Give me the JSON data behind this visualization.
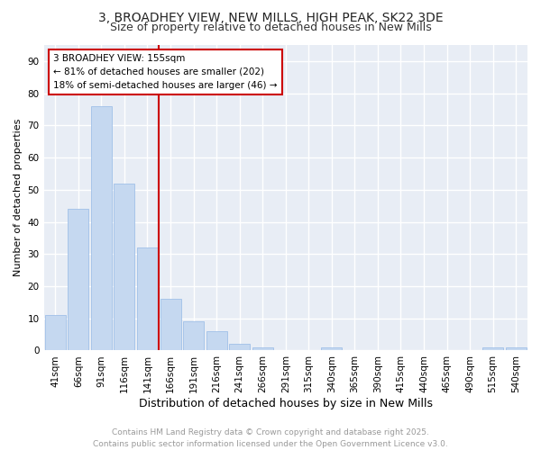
{
  "title": "3, BROADHEY VIEW, NEW MILLS, HIGH PEAK, SK22 3DE",
  "subtitle": "Size of property relative to detached houses in New Mills",
  "xlabel": "Distribution of detached houses by size in New Mills",
  "ylabel": "Number of detached properties",
  "bar_color": "#c5d8f0",
  "bar_edge_color": "#a0c0e8",
  "figure_bg": "#ffffff",
  "axes_bg": "#e8edf5",
  "grid_color": "#ffffff",
  "categories": [
    "41sqm",
    "66sqm",
    "91sqm",
    "116sqm",
    "141sqm",
    "166sqm",
    "191sqm",
    "216sqm",
    "241sqm",
    "266sqm",
    "291sqm",
    "315sqm",
    "340sqm",
    "365sqm",
    "390sqm",
    "415sqm",
    "440sqm",
    "465sqm",
    "490sqm",
    "515sqm",
    "540sqm"
  ],
  "values": [
    11,
    44,
    76,
    52,
    32,
    16,
    9,
    6,
    2,
    1,
    0,
    0,
    1,
    0,
    0,
    0,
    0,
    0,
    0,
    1,
    1
  ],
  "ylim": [
    0,
    95
  ],
  "yticks": [
    0,
    10,
    20,
    30,
    40,
    50,
    60,
    70,
    80,
    90
  ],
  "vline_index": 5,
  "property_line_label": "3 BROADHEY VIEW: 155sqm",
  "annotation_line1": "← 81% of detached houses are smaller (202)",
  "annotation_line2": "18% of semi-detached houses are larger (46) →",
  "annotation_box_color": "#ffffff",
  "annotation_box_edge": "#cc0000",
  "vline_color": "#cc0000",
  "footer_line1": "Contains HM Land Registry data © Crown copyright and database right 2025.",
  "footer_line2": "Contains public sector information licensed under the Open Government Licence v3.0.",
  "footer_color": "#999999",
  "title_fontsize": 10,
  "subtitle_fontsize": 9,
  "xlabel_fontsize": 9,
  "ylabel_fontsize": 8,
  "tick_fontsize": 7.5,
  "annotation_fontsize": 7.5,
  "footer_fontsize": 6.5
}
